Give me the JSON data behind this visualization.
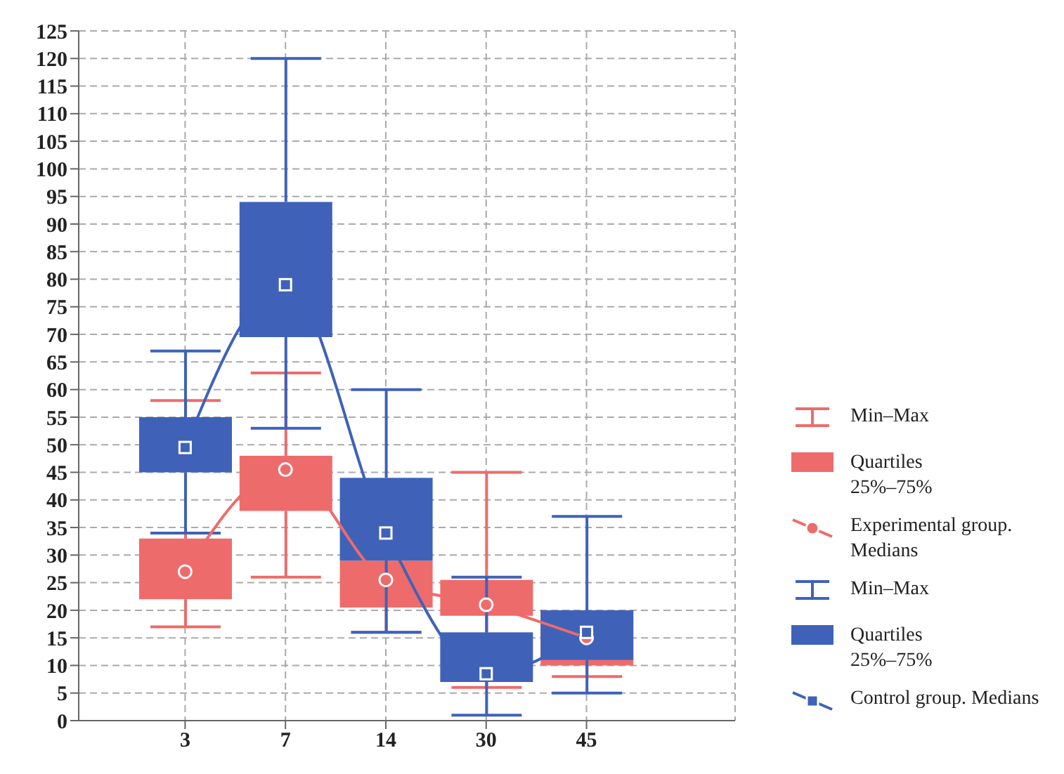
{
  "chart_data": {
    "type": "box",
    "categories": [
      "3",
      "7",
      "14",
      "30",
      "45"
    ],
    "ylim": [
      0,
      125
    ],
    "yticks": [
      0,
      5,
      10,
      15,
      20,
      25,
      30,
      35,
      40,
      45,
      50,
      55,
      60,
      65,
      70,
      75,
      80,
      85,
      90,
      95,
      100,
      105,
      110,
      115,
      120,
      125
    ],
    "grid": true,
    "legend": "right",
    "annotations": [
      "Min–Max",
      "Quartiles 25%–75%",
      "Min–Max",
      "Quartiles 25%–75%"
    ],
    "series": [
      {
        "color": "#ee6b6b",
        "boxes": [
          {
            "low": 17,
            "q1": 22,
            "q3": 33,
            "high": 58
          },
          {
            "low": 26,
            "q1": 38,
            "q3": 48,
            "high": 63
          },
          {
            "low": 16,
            "q1": 20.5,
            "q3": 29,
            "high": 29
          },
          {
            "low": 6,
            "q1": 19,
            "q3": 25.5,
            "high": 45
          },
          {
            "low": 8,
            "q1": 10,
            "q3": 20,
            "high": 20
          }
        ]
      },
      {
        "type": "line",
        "name": "Experimental group. Medians",
        "color": "#ee6b6b",
        "marker": "circle",
        "values": [
          27,
          45.5,
          25.5,
          21,
          15
        ]
      },
      {
        "color": "#3f62b8",
        "boxes": [
          {
            "low": 34,
            "q1": 45,
            "q3": 55,
            "high": 67
          },
          {
            "low": 53,
            "q1": 69.5,
            "q3": 94,
            "high": 120
          },
          {
            "low": 16,
            "q1": 29,
            "q3": 44,
            "high": 60
          },
          {
            "low": 1,
            "q1": 7,
            "q3": 16,
            "high": 26
          },
          {
            "low": 5,
            "q1": 11,
            "q3": 20,
            "high": 37
          }
        ]
      },
      {
        "type": "line",
        "name": "Control group. Medians",
        "color": "#3f62b8",
        "marker": "square",
        "values": [
          49.5,
          79,
          34,
          8.5,
          16
        ]
      }
    ]
  }
}
